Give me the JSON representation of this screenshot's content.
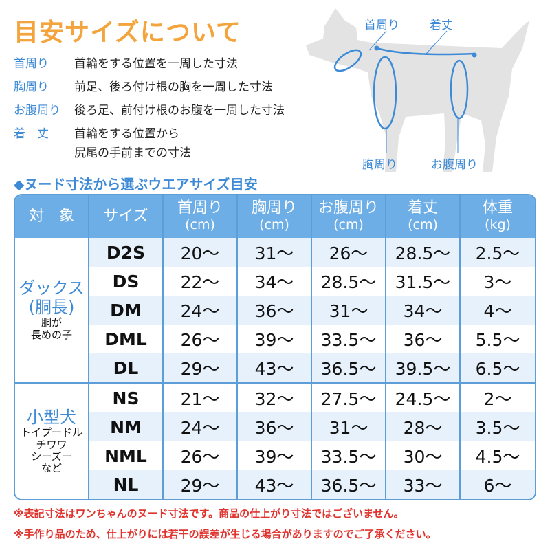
{
  "title": "目安サイズについて",
  "definitions": [
    {
      "key": "首周り",
      "lines": [
        "首輪をする位置を一周した寸法"
      ]
    },
    {
      "key": "胸周り",
      "lines": [
        "前足、後ろ付け根の胸を一周した寸法"
      ]
    },
    {
      "key": "お腹周り",
      "lines": [
        "後ろ足、前付け根のお腹を一周した寸法"
      ]
    },
    {
      "key": "着　丈",
      "lines": [
        "首輪をする位置から",
        "尻尾の手前までの寸法"
      ]
    }
  ],
  "dog_labels": {
    "neck": "首周り",
    "length": "着丈",
    "chest": "胸周り",
    "belly": "お腹周り"
  },
  "subtitle": "◆ヌード寸法から選ぶウエアサイズ目安",
  "table": {
    "headers": [
      {
        "label": "対　象",
        "unit": ""
      },
      {
        "label": "サイズ",
        "unit": ""
      },
      {
        "label": "首周り",
        "unit": "(cm)"
      },
      {
        "label": "胸周り",
        "unit": "(cm)"
      },
      {
        "label": "お腹周り",
        "unit": "(cm)"
      },
      {
        "label": "着丈",
        "unit": "(cm)"
      },
      {
        "label": "体重",
        "unit": "(kg)"
      }
    ],
    "groups": [
      {
        "name": "ダックス",
        "name2": "(胴長)",
        "sub": [
          "胴が",
          "長めの子"
        ],
        "rows": [
          [
            "D2S",
            "20〜",
            "31〜",
            "26〜",
            "28.5〜",
            "2.5〜"
          ],
          [
            "DS",
            "22〜",
            "34〜",
            "28.5〜",
            "31.5〜",
            "3〜"
          ],
          [
            "DM",
            "24〜",
            "36〜",
            "31〜",
            "34〜",
            "4〜"
          ],
          [
            "DML",
            "26〜",
            "39〜",
            "33.5〜",
            "36〜",
            "5.5〜"
          ],
          [
            "DL",
            "29〜",
            "43〜",
            "36.5〜",
            "39.5〜",
            "6.5〜"
          ]
        ]
      },
      {
        "name": "小型犬",
        "name2": "",
        "sub": [
          "トイプードル",
          "チワワ",
          "シーズー",
          "など"
        ],
        "rows": [
          [
            "NS",
            "21〜",
            "32〜",
            "27.5〜",
            "24.5〜",
            "2〜"
          ],
          [
            "NM",
            "24〜",
            "36〜",
            "31〜",
            "28〜",
            "3.5〜"
          ],
          [
            "NML",
            "26〜",
            "39〜",
            "33.5〜",
            "30〜",
            "4.5〜"
          ],
          [
            "NL",
            "29〜",
            "43〜",
            "36.5〜",
            "33〜",
            "6〜"
          ]
        ]
      }
    ]
  },
  "notes": [
    "※表記寸法はワンちゃんのヌード寸法です。商品の仕上がり寸法ではございません。",
    "※手作り品のため、仕上がりには若干の誤差が生じる場合がありますのでご了承ください。"
  ],
  "colors": {
    "title": "#f4a43c",
    "accent": "#3d8ad6",
    "header": "#6eaee6",
    "stripe": "#e6f1fb",
    "note": "#e0332d",
    "dog": "#e3e3e3"
  }
}
